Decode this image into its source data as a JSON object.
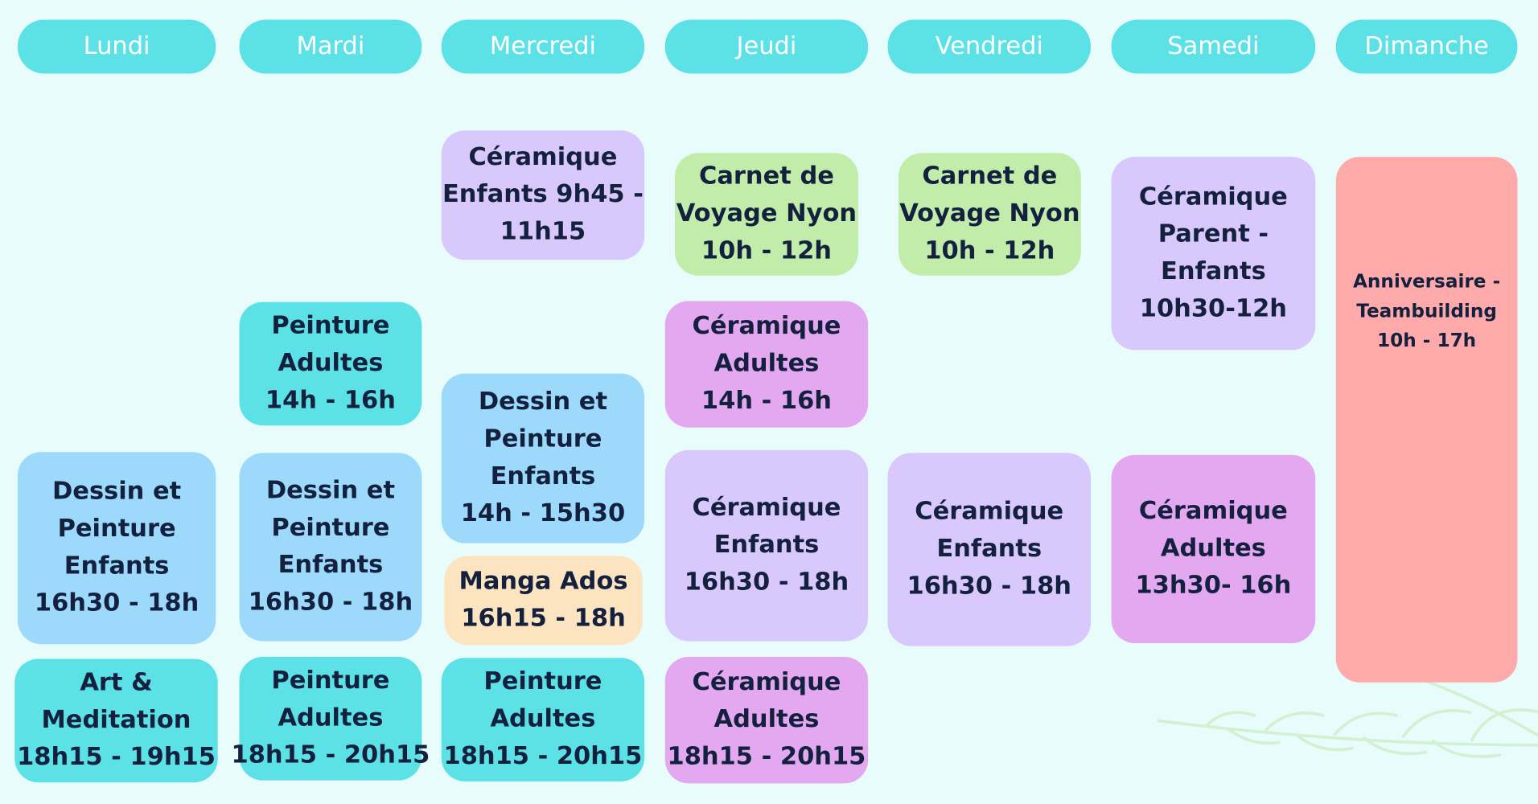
{
  "days": [
    {
      "name": "Lundi",
      "color": "#5ce1e6",
      "events": [
        {
          "lines": [
            "Dessin et",
            "Peinture",
            "Enfants",
            "16h30 - 18h"
          ],
          "color": "#9dd9fb"
        },
        {
          "lines": [
            "Art &",
            "Meditation",
            "18h15 - 19h15"
          ],
          "color": "#5ce1e6"
        }
      ]
    },
    {
      "name": "Mardi",
      "color": "#5ce1e6",
      "events": [
        {
          "lines": [
            "Peinture",
            "Adultes",
            "14h - 16h"
          ],
          "color": "#5ce1e6"
        },
        {
          "lines": [
            "Dessin et",
            "Peinture",
            "Enfants",
            "16h30 - 18h"
          ],
          "color": "#9dd9fb"
        },
        {
          "lines": [
            "Peinture",
            "Adultes",
            "18h15 - 20h15"
          ],
          "color": "#5ce1e6"
        }
      ]
    },
    {
      "name": "Mercredi",
      "color": "#5ce1e6",
      "events": [
        {
          "lines": [
            "Céramique",
            "Enfants 9h45 -",
            "11h15"
          ],
          "color": "#d9c8fb"
        },
        {
          "lines": [
            "Dessin et",
            "Peinture",
            "Enfants",
            "14h - 15h30"
          ],
          "color": "#9dd9fb"
        },
        {
          "lines": [
            "Manga Ados",
            "16h15 - 18h"
          ],
          "color": "#fde4c0"
        },
        {
          "lines": [
            "Peinture",
            "Adultes",
            "18h15 - 20h15"
          ],
          "color": "#5ce1e6"
        }
      ]
    },
    {
      "name": "Jeudi",
      "color": "#5ce1e6",
      "events": [
        {
          "lines": [
            "Carnet de",
            "Voyage Nyon",
            "10h - 12h"
          ],
          "color": "#c2ecaa"
        },
        {
          "lines": [
            "Céramique",
            "Adultes",
            "14h - 16h"
          ],
          "color": "#e4a8f0"
        },
        {
          "lines": [
            "Céramique",
            "Enfants",
            "16h30 - 18h"
          ],
          "color": "#d9c8fb"
        },
        {
          "lines": [
            "Céramique",
            "Adultes",
            "18h15 - 20h15"
          ],
          "color": "#e4a8f0"
        }
      ]
    },
    {
      "name": "Vendredi",
      "color": "#5ce1e6",
      "events": [
        {
          "lines": [
            "Carnet de",
            "Voyage Nyon",
            "10h - 12h"
          ],
          "color": "#c2ecaa"
        },
        {
          "lines": [
            "Céramique",
            "Enfants",
            "16h30 - 18h"
          ],
          "color": "#d9c8fb"
        }
      ]
    },
    {
      "name": "Samedi",
      "color": "#5ce1e6",
      "events": [
        {
          "lines": [
            "Céramique",
            "Parent -",
            "Enfants",
            "10h30-12h"
          ],
          "color": "#d9c8fb"
        },
        {
          "lines": [
            "Céramique",
            "Adultes",
            "13h30- 16h"
          ],
          "color": "#e4a8f0"
        }
      ]
    },
    {
      "name": "Dimanche",
      "color": "#5ce1e6",
      "events": [
        {
          "lines": [
            "Anniversaire -",
            "Teambuilding",
            "10h - 17h"
          ],
          "color": "#ffaaaa"
        }
      ]
    }
  ]
}
